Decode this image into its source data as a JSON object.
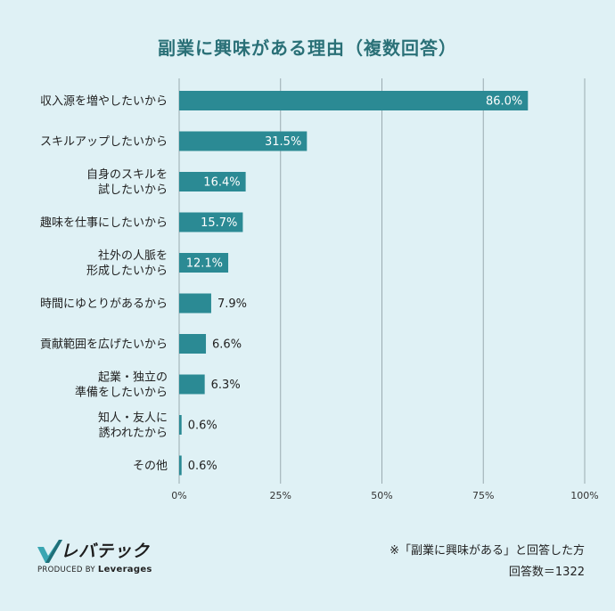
{
  "chart_data": {
    "type": "bar",
    "orientation": "horizontal",
    "title": "副業に興味がある理由（複数回答）",
    "categories": [
      [
        "収入源を増やしたいから"
      ],
      [
        "スキルアップしたいから"
      ],
      [
        "自身のスキルを",
        "試したいから"
      ],
      [
        "趣味を仕事にしたいから"
      ],
      [
        "社外の人脈を",
        "形成したいから"
      ],
      [
        "時間にゆとりがあるから"
      ],
      [
        "貢献範囲を広げたいから"
      ],
      [
        "起業・独立の",
        "準備をしたいから"
      ],
      [
        "知人・友人に",
        "誘われたから"
      ],
      [
        "その他"
      ]
    ],
    "values": [
      86.0,
      31.5,
      16.4,
      15.7,
      12.1,
      7.9,
      6.6,
      6.3,
      0.6,
      0.6
    ],
    "value_labels": [
      "86.0%",
      "31.5%",
      "16.4%",
      "15.7%",
      "12.1%",
      "7.9%",
      "6.6%",
      "6.3%",
      "0.6%",
      "0.6%"
    ],
    "xlim": [
      0,
      100
    ],
    "ticks": [
      0,
      25,
      50,
      75,
      100
    ],
    "tick_labels": [
      "0%",
      "25%",
      "50%",
      "75%",
      "100%"
    ],
    "grid": true,
    "bar_color": "#2b8a94",
    "grid_color": "#9aaab0"
  },
  "footer": {
    "note": "※「副業に興味がある」と回答した方",
    "count": "回答数＝1322"
  },
  "logo": {
    "name": "レバテック",
    "produced_by": "PRODUCED BY",
    "company": "Leverages"
  }
}
